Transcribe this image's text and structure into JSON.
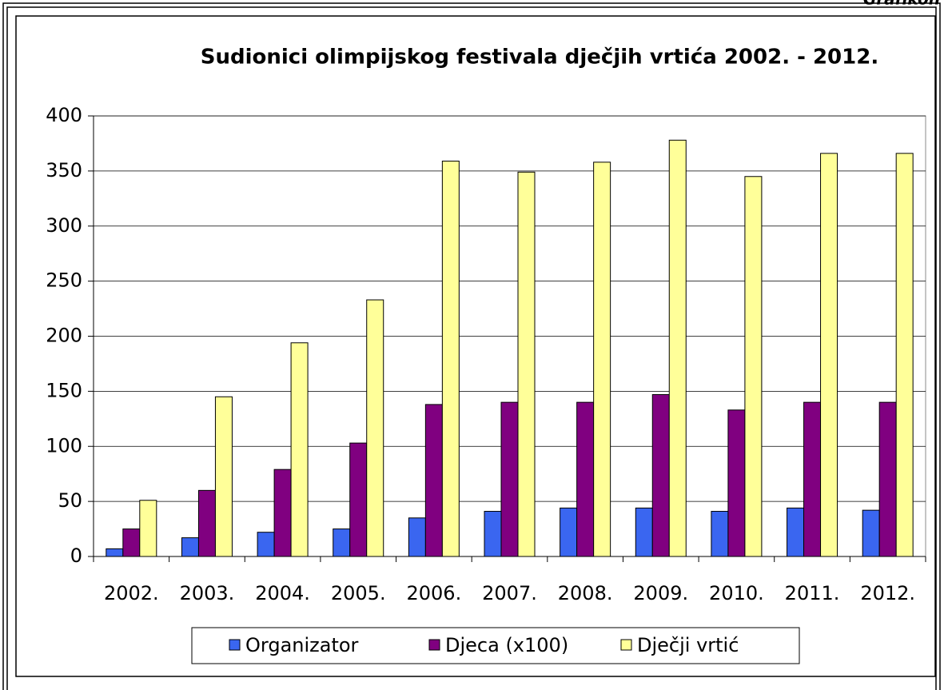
{
  "corner_label": "Grafikon",
  "chart_data": {
    "type": "bar",
    "title": "Sudionici olimpijskog festivala dječjih vrtića 2002. - 2012.",
    "categories": [
      "2002.",
      "2003.",
      "2004.",
      "2005.",
      "2006.",
      "2007.",
      "2008.",
      "2009.",
      "2010.",
      "2011.",
      "2012."
    ],
    "series": [
      {
        "name": "Organizator",
        "color": "#3a66f0",
        "values": [
          7,
          17,
          22,
          25,
          35,
          41,
          44,
          44,
          41,
          44,
          42
        ]
      },
      {
        "name": "Djeca (x100)",
        "color": "#800080",
        "values": [
          25,
          60,
          79,
          103,
          138,
          140,
          140,
          147,
          133,
          140,
          140
        ]
      },
      {
        "name": "Dječji vrtić",
        "color": "#ffff99",
        "values": [
          51,
          145,
          194,
          233,
          359,
          349,
          358,
          378,
          345,
          366,
          366
        ]
      }
    ],
    "ylim": [
      0,
      400
    ],
    "yticks": [
      0,
      50,
      100,
      150,
      200,
      250,
      300,
      350,
      400
    ],
    "grid": true,
    "legend": "bottom"
  }
}
